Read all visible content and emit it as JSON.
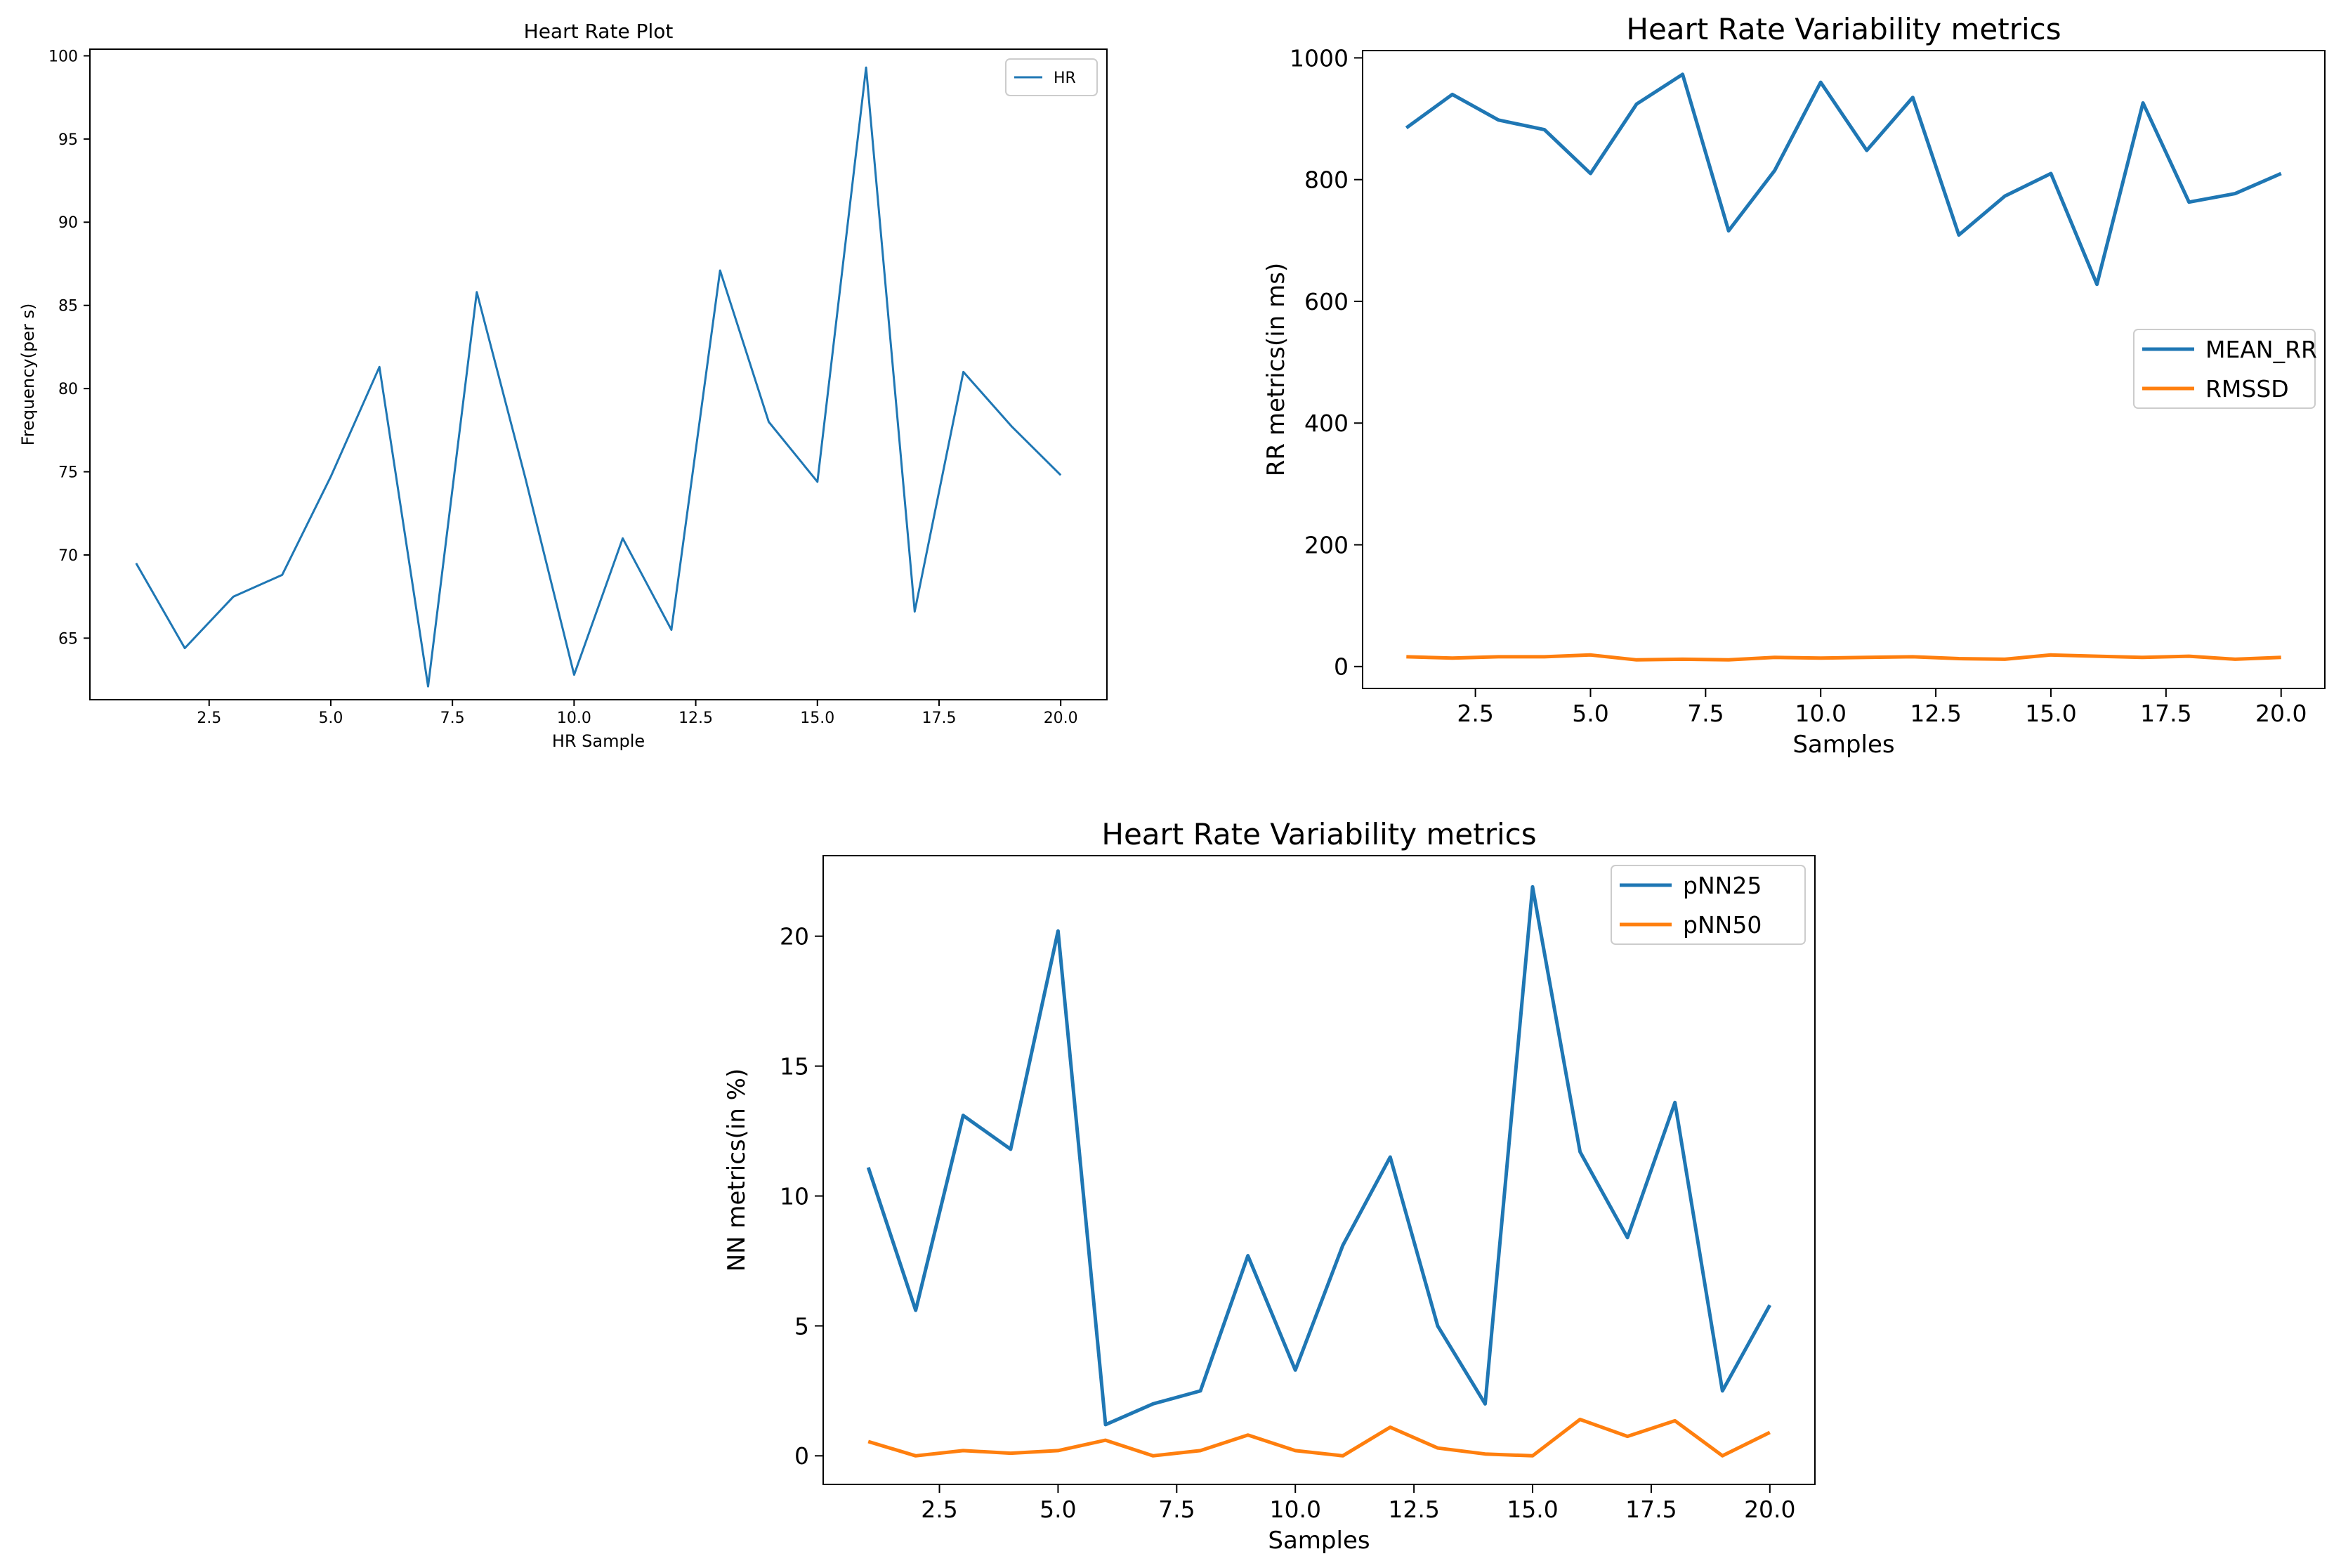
{
  "colors": {
    "blue": "#1f77b4",
    "orange": "#ff7f0e",
    "axis": "#000000"
  },
  "chart_data": [
    {
      "type": "line",
      "title": "Heart Rate Plot",
      "xlabel": "HR Sample",
      "ylabel": "Frequency(per s)",
      "xlim": [
        0.05,
        20.95
      ],
      "ylim": [
        61.3,
        100.4
      ],
      "xticks": [
        2.5,
        5.0,
        7.5,
        10.0,
        12.5,
        15.0,
        17.5,
        20.0
      ],
      "xtick_labels": [
        "2.5",
        "5.0",
        "7.5",
        "10.0",
        "12.5",
        "15.0",
        "17.5",
        "20.0"
      ],
      "yticks": [
        65,
        70,
        75,
        80,
        85,
        90,
        95,
        100
      ],
      "ytick_labels": [
        "65",
        "70",
        "75",
        "80",
        "85",
        "90",
        "95",
        "100"
      ],
      "legend_position": "top-right",
      "x": [
        1,
        2,
        3,
        4,
        5,
        6,
        7,
        8,
        9,
        10,
        11,
        12,
        13,
        14,
        15,
        16,
        17,
        18,
        19,
        20
      ],
      "series": [
        {
          "name": "HR",
          "color": "#1f77b4",
          "values": [
            69.5,
            64.4,
            67.5,
            68.8,
            74.7,
            81.3,
            62.1,
            85.8,
            74.6,
            62.8,
            71.0,
            65.5,
            87.1,
            78.0,
            74.4,
            99.3,
            66.6,
            81.0,
            77.7,
            74.8
          ]
        }
      ]
    },
    {
      "type": "line",
      "title": "Heart Rate Variability metrics",
      "xlabel": "Samples",
      "ylabel": "RR metrics(in ms)",
      "xlim": [
        0.05,
        20.95
      ],
      "ylim": [
        -36,
        1012
      ],
      "xticks": [
        2.5,
        5.0,
        7.5,
        10.0,
        12.5,
        15.0,
        17.5,
        20.0
      ],
      "xtick_labels": [
        "2.5",
        "5.0",
        "7.5",
        "10.0",
        "12.5",
        "15.0",
        "17.5",
        "20.0"
      ],
      "yticks": [
        0,
        200,
        400,
        600,
        800,
        1000
      ],
      "ytick_labels": [
        "0",
        "200",
        "400",
        "600",
        "800",
        "1000"
      ],
      "legend_position": "center-right",
      "x": [
        1,
        2,
        3,
        4,
        5,
        6,
        7,
        8,
        9,
        10,
        11,
        12,
        13,
        14,
        15,
        16,
        17,
        18,
        19,
        20
      ],
      "series": [
        {
          "name": "MEAN_RR",
          "color": "#1f77b4",
          "values": [
            885,
            940,
            898,
            882,
            810,
            924,
            973,
            716,
            815,
            960,
            848,
            935,
            709,
            773,
            810,
            628,
            926,
            763,
            777,
            810
          ]
        },
        {
          "name": "RMSSD",
          "color": "#ff7f0e",
          "values": [
            16,
            14,
            16,
            16,
            19,
            11,
            12,
            11,
            15,
            14,
            15,
            16,
            13,
            12,
            19,
            17,
            15,
            17,
            12,
            15
          ]
        }
      ]
    },
    {
      "type": "line",
      "title": "Heart Rate Variability metrics",
      "xlabel": "Samples",
      "ylabel": "NN metrics(in %)",
      "xlim": [
        0.05,
        20.95
      ],
      "ylim": [
        -1.1,
        23.1
      ],
      "xticks": [
        2.5,
        5.0,
        7.5,
        10.0,
        12.5,
        15.0,
        17.5,
        20.0
      ],
      "xtick_labels": [
        "2.5",
        "5.0",
        "7.5",
        "10.0",
        "12.5",
        "15.0",
        "17.5",
        "20.0"
      ],
      "yticks": [
        0,
        5,
        10,
        15,
        20
      ],
      "ytick_labels": [
        "0",
        "5",
        "10",
        "15",
        "20"
      ],
      "legend_position": "top-right",
      "x": [
        1,
        2,
        3,
        4,
        5,
        6,
        7,
        8,
        9,
        10,
        11,
        12,
        13,
        14,
        15,
        16,
        17,
        18,
        19,
        20
      ],
      "series": [
        {
          "name": "pNN25",
          "color": "#1f77b4",
          "values": [
            11.1,
            5.6,
            13.1,
            11.8,
            20.2,
            1.2,
            2.0,
            2.5,
            7.7,
            3.3,
            8.1,
            11.5,
            5.0,
            2.0,
            21.9,
            11.7,
            8.4,
            13.6,
            2.5,
            5.8
          ]
        },
        {
          "name": "pNN50",
          "color": "#ff7f0e",
          "values": [
            0.55,
            0.0,
            0.2,
            0.1,
            0.2,
            0.6,
            0.0,
            0.2,
            0.8,
            0.2,
            0.0,
            1.1,
            0.3,
            0.07,
            0.0,
            1.4,
            0.75,
            1.35,
            0.0,
            0.9
          ]
        }
      ]
    }
  ]
}
